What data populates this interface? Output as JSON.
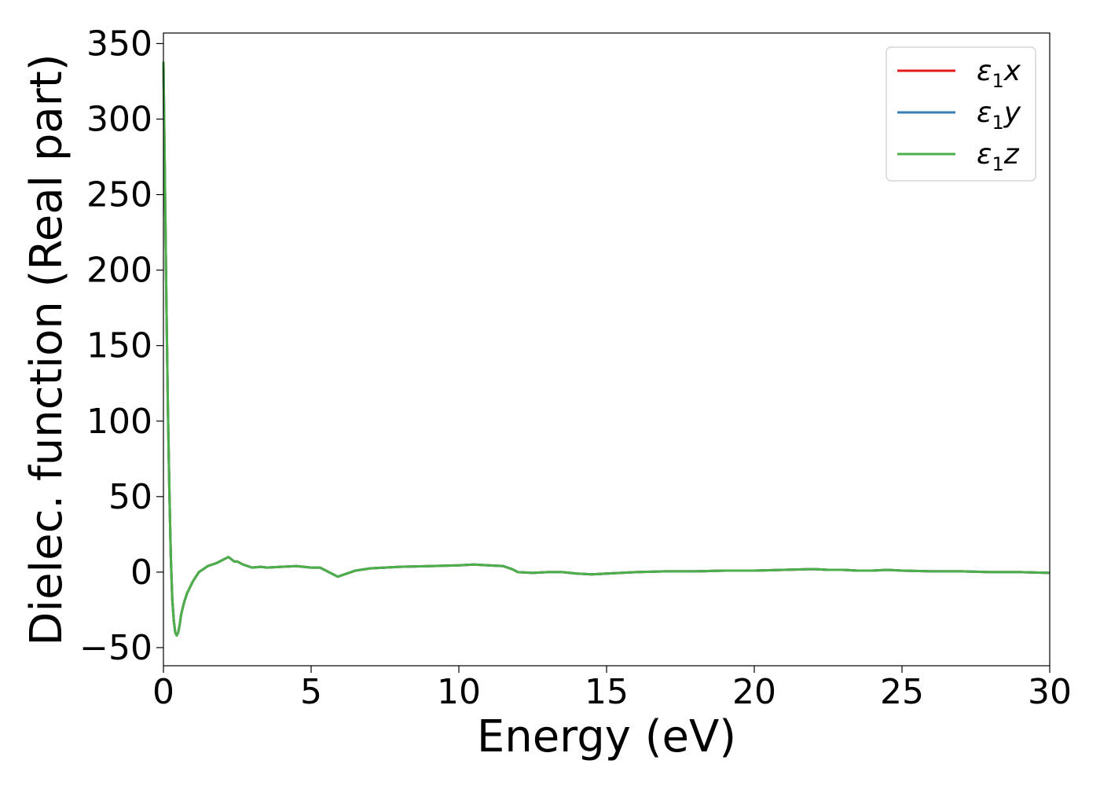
{
  "chart_data": {
    "type": "line",
    "title": "",
    "xlabel": "Energy (eV)",
    "ylabel": "Dielec. function (Real part)",
    "xlim": [
      0,
      30
    ],
    "ylim": [
      -62,
      357
    ],
    "xticks": [
      "0",
      "5",
      "10",
      "15",
      "20",
      "25",
      "30"
    ],
    "yticks": [
      "−50",
      "0",
      "50",
      "100",
      "150",
      "200",
      "250",
      "300",
      "350"
    ],
    "grid": false,
    "legend_position": "top-right",
    "series": [
      {
        "name": "x",
        "legend_symbol": "ε",
        "legend_sub": "1",
        "legend_var": "x",
        "color": "#e41a1c",
        "x": [
          0,
          0.05,
          0.1,
          0.15,
          0.2,
          0.25,
          0.3,
          0.35,
          0.4,
          0.45,
          0.5,
          0.55,
          0.6,
          0.7,
          0.8,
          1.0,
          1.2,
          1.5,
          1.8,
          2.0,
          2.2,
          2.4,
          2.5,
          2.7,
          3.0,
          3.3,
          3.5,
          4.0,
          4.5,
          5.0,
          5.3,
          5.6,
          5.9,
          6.2,
          6.5,
          7.0,
          8.0,
          9.0,
          10.0,
          10.5,
          11.0,
          11.5,
          11.8,
          12.0,
          12.5,
          13.0,
          13.5,
          14.0,
          14.5,
          15.0,
          16.0,
          17.0,
          18.0,
          19.0,
          20.0,
          21.0,
          22.0,
          22.5,
          23.0,
          23.5,
          24.0,
          24.5,
          25.0,
          26.0,
          27.0,
          28.0,
          29.0,
          30.0
        ],
        "y": [
          338,
          260,
          180,
          110,
          55,
          10,
          -18,
          -32,
          -40,
          -42,
          -40,
          -35,
          -28,
          -20,
          -14,
          -6,
          0,
          4,
          6,
          8,
          10,
          7,
          7,
          5,
          3,
          3.5,
          3,
          3.5,
          4,
          3,
          3,
          0,
          -3,
          -1,
          1,
          2.5,
          3.5,
          4,
          4.5,
          5,
          4.5,
          4,
          2,
          0,
          -0.5,
          0,
          0,
          -1,
          -1.5,
          -1,
          0,
          0.5,
          0.5,
          1,
          1,
          1.5,
          2,
          1.5,
          1.5,
          1,
          1,
          1.5,
          1,
          0.5,
          0.5,
          0,
          0,
          -0.5
        ]
      },
      {
        "name": "y",
        "legend_symbol": "ε",
        "legend_sub": "1",
        "legend_var": "y",
        "color": "#377eb8",
        "x": [
          0,
          0.05,
          0.1,
          0.15,
          0.2,
          0.25,
          0.3,
          0.35,
          0.4,
          0.45,
          0.5,
          0.55,
          0.6,
          0.7,
          0.8,
          1.0,
          1.2,
          1.5,
          1.8,
          2.0,
          2.2,
          2.4,
          2.5,
          2.7,
          3.0,
          3.3,
          3.5,
          4.0,
          4.5,
          5.0,
          5.3,
          5.6,
          5.9,
          6.2,
          6.5,
          7.0,
          8.0,
          9.0,
          10.0,
          10.5,
          11.0,
          11.5,
          11.8,
          12.0,
          12.5,
          13.0,
          13.5,
          14.0,
          14.5,
          15.0,
          16.0,
          17.0,
          18.0,
          19.0,
          20.0,
          21.0,
          22.0,
          22.5,
          23.0,
          23.5,
          24.0,
          24.5,
          25.0,
          26.0,
          27.0,
          28.0,
          29.0,
          30.0
        ],
        "y": [
          338,
          260,
          180,
          110,
          55,
          10,
          -18,
          -32,
          -40,
          -42,
          -40,
          -35,
          -28,
          -20,
          -14,
          -6,
          0,
          4,
          6,
          8,
          10,
          7,
          7,
          5,
          3,
          3.5,
          3,
          3.5,
          4,
          3,
          3,
          0,
          -3,
          -1,
          1,
          2.5,
          3.5,
          4,
          4.5,
          5,
          4.5,
          4,
          2,
          0,
          -0.5,
          0,
          0,
          -1,
          -1.5,
          -1,
          0,
          0.5,
          0.5,
          1,
          1,
          1.5,
          2,
          1.5,
          1.5,
          1,
          1,
          1.5,
          1,
          0.5,
          0.5,
          0,
          0,
          -0.5
        ]
      },
      {
        "name": "z",
        "legend_symbol": "ε",
        "legend_sub": "1",
        "legend_var": "z",
        "color": "#4daf4a",
        "x": [
          0,
          0.05,
          0.1,
          0.15,
          0.2,
          0.25,
          0.3,
          0.35,
          0.4,
          0.45,
          0.5,
          0.55,
          0.6,
          0.7,
          0.8,
          1.0,
          1.2,
          1.5,
          1.8,
          2.0,
          2.2,
          2.4,
          2.5,
          2.7,
          3.0,
          3.3,
          3.5,
          4.0,
          4.5,
          5.0,
          5.3,
          5.6,
          5.9,
          6.2,
          6.5,
          7.0,
          8.0,
          9.0,
          10.0,
          10.5,
          11.0,
          11.5,
          11.8,
          12.0,
          12.5,
          13.0,
          13.5,
          14.0,
          14.5,
          15.0,
          16.0,
          17.0,
          18.0,
          19.0,
          20.0,
          21.0,
          22.0,
          22.5,
          23.0,
          23.5,
          24.0,
          24.5,
          25.0,
          26.0,
          27.0,
          28.0,
          29.0,
          30.0
        ],
        "y": [
          338,
          260,
          180,
          110,
          55,
          10,
          -18,
          -32,
          -40,
          -42,
          -40,
          -35,
          -28,
          -20,
          -14,
          -6,
          0,
          4,
          6,
          8,
          10,
          7,
          7,
          5,
          3,
          3.5,
          3,
          3.5,
          4,
          3,
          3,
          0,
          -3,
          -1,
          1,
          2.5,
          3.5,
          4,
          4.5,
          5,
          4.5,
          4,
          2,
          0,
          -0.5,
          0,
          0,
          -1,
          -1.5,
          -1,
          0,
          0.5,
          0.5,
          1,
          1,
          1.5,
          2,
          1.5,
          1.5,
          1,
          1,
          1.5,
          1,
          0.5,
          0.5,
          0,
          0,
          -0.5
        ]
      }
    ]
  }
}
